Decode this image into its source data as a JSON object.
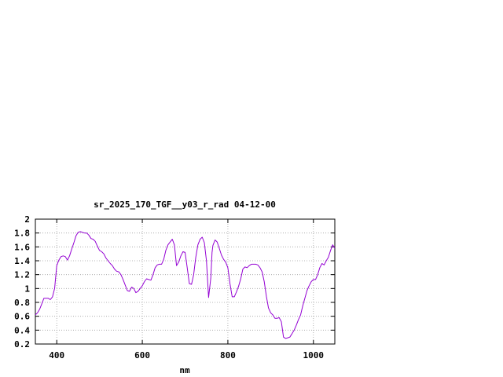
{
  "chart_data": {
    "type": "line",
    "title": "sr_2025_170_TGF__y03_r_rad 04-12-00",
    "xlabel": "nm",
    "ylabel": "",
    "xlim": [
      350,
      1050
    ],
    "ylim": [
      0.2,
      2.0
    ],
    "grid": true,
    "x_ticks": [
      400,
      600,
      800,
      1000
    ],
    "x_tick_labels": [
      "400",
      "600",
      "800",
      "1000"
    ],
    "y_ticks": [
      0.2,
      0.4,
      0.6,
      0.8,
      1.0,
      1.2,
      1.4,
      1.6,
      1.8,
      2.0
    ],
    "y_tick_labels": [
      "0.2",
      "0.4",
      "0.6",
      "0.8",
      "1",
      "1.2",
      "1.4",
      "1.6",
      "1.8",
      "2"
    ],
    "line_color": "#9400d3",
    "series": [
      {
        "x": [
          350,
          355,
          360,
          365,
          370,
          375,
          380,
          385,
          390,
          395,
          400,
          405,
          410,
          415,
          420,
          425,
          430,
          435,
          440,
          445,
          450,
          455,
          460,
          465,
          470,
          475,
          480,
          485,
          490,
          495,
          500,
          505,
          510,
          515,
          520,
          525,
          530,
          535,
          540,
          545,
          550,
          555,
          560,
          565,
          570,
          575,
          580,
          585,
          590,
          595,
          600,
          605,
          610,
          615,
          620,
          625,
          630,
          635,
          640,
          645,
          650,
          655,
          660,
          665,
          670,
          675,
          680,
          685,
          690,
          695,
          700,
          705,
          710,
          715,
          720,
          725,
          730,
          735,
          740,
          745,
          750,
          755,
          760,
          763,
          765,
          770,
          775,
          780,
          785,
          790,
          795,
          800,
          805,
          810,
          815,
          820,
          825,
          830,
          835,
          840,
          845,
          850,
          855,
          860,
          865,
          870,
          875,
          880,
          885,
          890,
          895,
          900,
          905,
          910,
          915,
          920,
          925,
          930,
          935,
          940,
          945,
          950,
          955,
          960,
          965,
          970,
          975,
          980,
          985,
          990,
          995,
          1000,
          1005,
          1010,
          1015,
          1020,
          1025,
          1030,
          1035,
          1040,
          1045,
          1050
        ],
        "y": [
          0.62,
          0.65,
          0.7,
          0.78,
          0.86,
          0.86,
          0.86,
          0.84,
          0.88,
          1.0,
          1.33,
          1.41,
          1.46,
          1.47,
          1.46,
          1.41,
          1.47,
          1.57,
          1.66,
          1.76,
          1.81,
          1.82,
          1.81,
          1.8,
          1.8,
          1.77,
          1.72,
          1.71,
          1.68,
          1.61,
          1.55,
          1.53,
          1.5,
          1.44,
          1.4,
          1.36,
          1.33,
          1.28,
          1.25,
          1.24,
          1.2,
          1.13,
          1.05,
          0.97,
          0.96,
          1.02,
          1.0,
          0.94,
          0.96,
          1.0,
          1.04,
          1.1,
          1.14,
          1.13,
          1.12,
          1.2,
          1.3,
          1.34,
          1.35,
          1.35,
          1.42,
          1.55,
          1.63,
          1.67,
          1.71,
          1.63,
          1.33,
          1.38,
          1.47,
          1.53,
          1.52,
          1.3,
          1.07,
          1.06,
          1.2,
          1.45,
          1.63,
          1.71,
          1.74,
          1.66,
          1.4,
          0.87,
          1.15,
          1.52,
          1.62,
          1.7,
          1.67,
          1.58,
          1.48,
          1.42,
          1.38,
          1.3,
          1.07,
          0.88,
          0.88,
          0.95,
          1.03,
          1.14,
          1.28,
          1.31,
          1.3,
          1.33,
          1.35,
          1.35,
          1.35,
          1.34,
          1.3,
          1.24,
          1.1,
          0.89,
          0.72,
          0.65,
          0.62,
          0.57,
          0.57,
          0.58,
          0.52,
          0.3,
          0.28,
          0.29,
          0.3,
          0.35,
          0.4,
          0.47,
          0.55,
          0.62,
          0.75,
          0.86,
          0.97,
          1.04,
          1.1,
          1.13,
          1.13,
          1.2,
          1.3,
          1.36,
          1.34,
          1.4,
          1.45,
          1.55,
          1.63,
          1.58
        ]
      }
    ]
  }
}
